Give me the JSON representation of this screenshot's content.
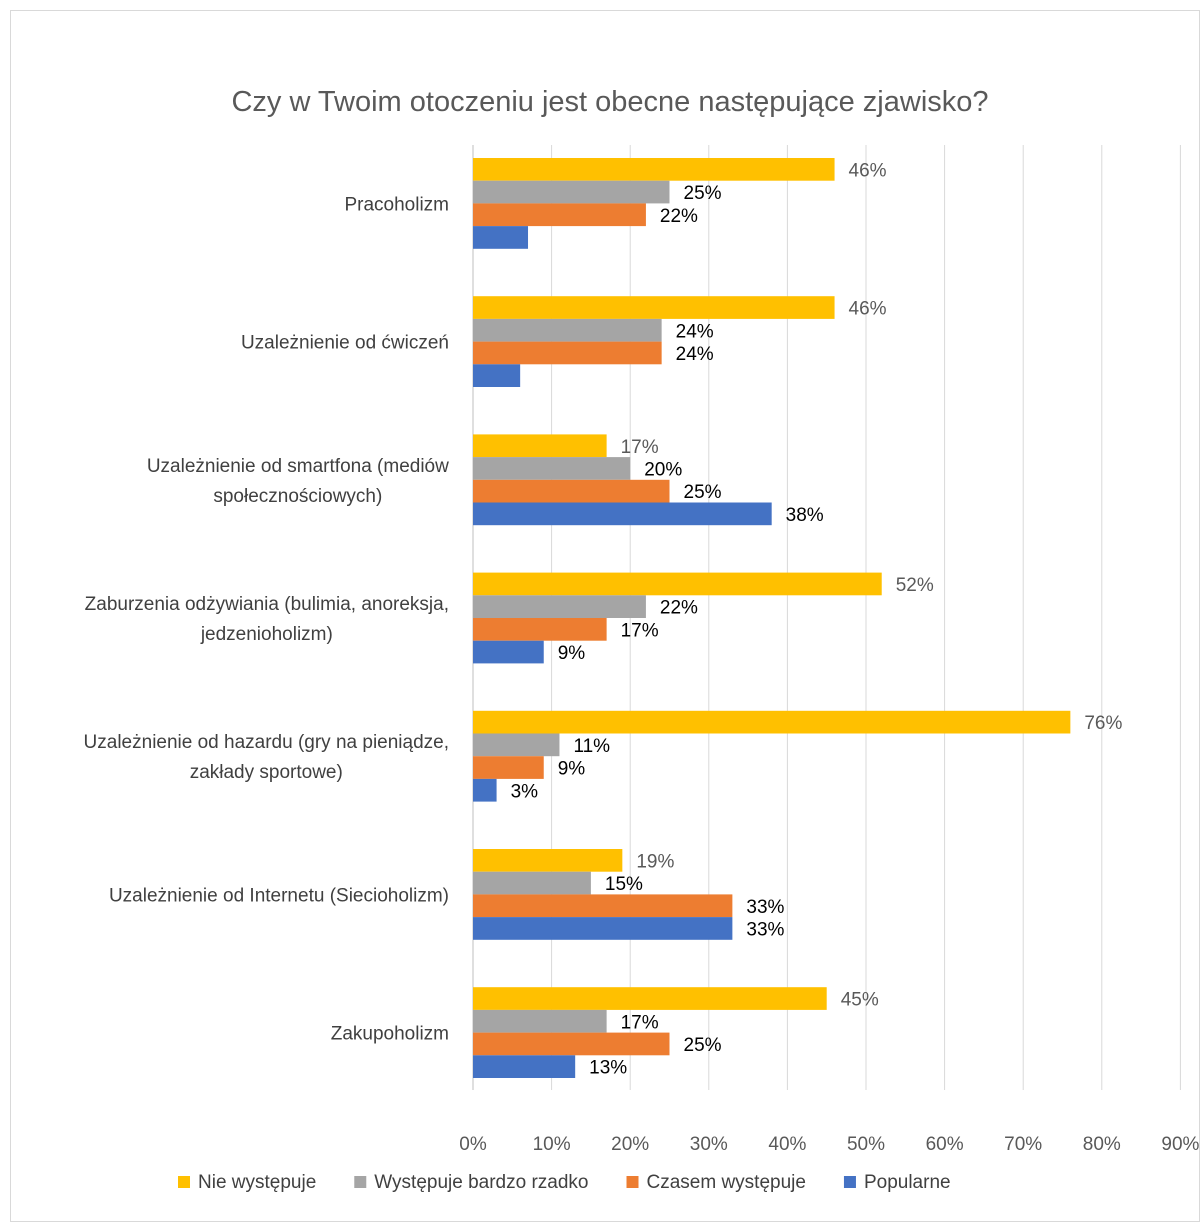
{
  "chart_data": {
    "type": "bar",
    "orientation": "horizontal",
    "title": "Czy w Twoim otoczeniu jest obecne następujące zjawisko?",
    "categories": [
      [
        "Pracoholizm"
      ],
      [
        "Uzależnienie od ćwiczeń"
      ],
      [
        "Uzależnienie od smartfona (mediów",
        "społecznościowych)"
      ],
      [
        "Zaburzenia odżywiania (bulimia, anoreksja,",
        "jedzenioholizm)"
      ],
      [
        "Uzależnienie od hazardu (gry na pieniądze,",
        "zakłady sportowe)"
      ],
      [
        "Uzależnienie od Internetu (Siecioholizm)"
      ],
      [
        "Zakupoholizm"
      ]
    ],
    "series": [
      {
        "name": "Nie występuje",
        "color": "#ffc000",
        "label_color": "#595959",
        "values": [
          46,
          46,
          17,
          52,
          76,
          19,
          45
        ],
        "labels": [
          "46%",
          "46%",
          "17%",
          "52%",
          "76%",
          "19%",
          "45%"
        ]
      },
      {
        "name": "Występuje bardzo rzadko",
        "color": "#a5a5a5",
        "label_color": "#000000",
        "values": [
          25,
          24,
          20,
          22,
          11,
          15,
          17
        ],
        "labels": [
          "25%",
          "24%",
          "20%",
          "22%",
          "11%",
          "15%",
          "17%"
        ]
      },
      {
        "name": "Czasem występuje",
        "color": "#ed7d31",
        "label_color": "#000000",
        "values": [
          22,
          24,
          25,
          17,
          9,
          33,
          25
        ],
        "labels": [
          "22%",
          "24%",
          "25%",
          "17%",
          "9%",
          "33%",
          "25%"
        ]
      },
      {
        "name": "Popularne",
        "color": "#4472c4",
        "label_color": "#000000",
        "values": [
          7,
          6,
          38,
          9,
          3,
          33,
          13
        ],
        "labels": [
          "",
          "",
          "38%",
          "9%",
          "3%",
          "33%",
          "13%"
        ]
      }
    ],
    "xlim": [
      0,
      90
    ],
    "xticks": [
      "0%",
      "10%",
      "20%",
      "30%",
      "40%",
      "50%",
      "60%",
      "70%",
      "80%",
      "90%"
    ],
    "grid": true,
    "legend_position": "bottom"
  }
}
